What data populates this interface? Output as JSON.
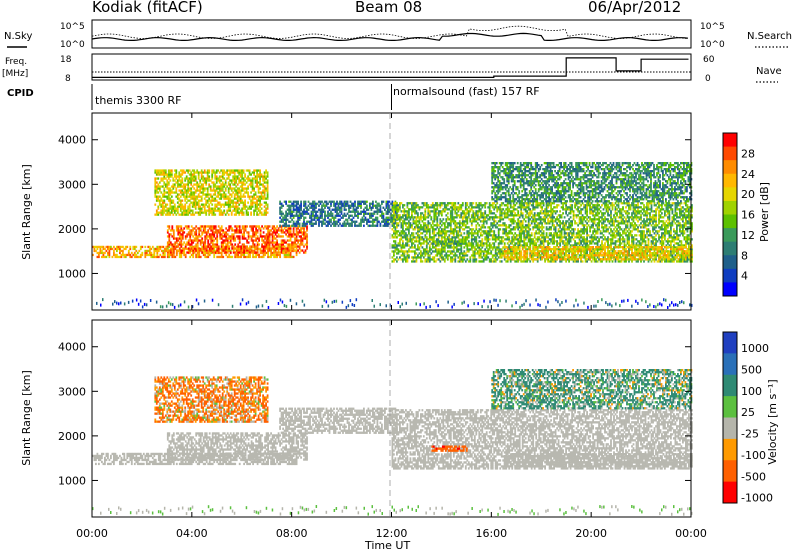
{
  "header": {
    "station": "Kodiak (fitACF)",
    "beam": "Beam 08",
    "date": "06/Apr/2012"
  },
  "top_panels": {
    "nsky_label": "N.Sky",
    "nsearch_label": "N.Search",
    "freq_label_1": "Freq.",
    "freq_label_2": "[MHz]",
    "nave_label": "Nave",
    "cpid_label": "CPID",
    "nsky_ticks": [
      "10^5",
      "10^0"
    ],
    "nsearch_ticks": [
      "10^5",
      "10^0"
    ],
    "freq_ticks": [
      "18",
      "8"
    ],
    "nave_ticks": [
      "60",
      "0"
    ]
  },
  "cpid": {
    "segment_1": "themis 3300 RF",
    "segment_2": "normalsound (fast) 157 RF",
    "switch_time_hours": 12.0
  },
  "panels": {
    "ylabel": "Slant Range [km]",
    "xlabel": "Time UT",
    "x_ticks": [
      "00:00",
      "04:00",
      "08:00",
      "12:00",
      "16:00",
      "20:00",
      "00:00"
    ],
    "y_ticks": [
      "1000",
      "2000",
      "3000",
      "4000"
    ]
  },
  "power_colorbar": {
    "label": "Power [dB]",
    "ticks": [
      "28",
      "24",
      "20",
      "16",
      "12",
      "8",
      "4"
    ],
    "colors": [
      "#ff0000",
      "#ff4a00",
      "#ff8c00",
      "#ffb800",
      "#e6d600",
      "#a0d200",
      "#5cc000",
      "#3a9a5a",
      "#2d7d73",
      "#1f5f8a",
      "#0f3dc0",
      "#0000ff"
    ]
  },
  "velocity_colorbar": {
    "label": "Velocity [m s⁻¹]",
    "ticks": [
      "1000",
      "500",
      "100",
      "25",
      "-25",
      "-100",
      "-500",
      "-1000"
    ],
    "colors": [
      "#2040c0",
      "#2a70b8",
      "#2f8a74",
      "#5cc040",
      "#b5b5ab",
      "#ff9a00",
      "#ff6000",
      "#ff0000"
    ],
    "ground_scatter_color": "#b8b8b0"
  },
  "chart_data": {
    "type": "heatmap",
    "title": "Kodiak (fitACF)",
    "xlabel": "Time UT",
    "ylabel": "Slant Range [km]",
    "xlim_hours": [
      0,
      24
    ],
    "ylim_km": [
      180,
      4600
    ],
    "power_range_db": [
      0,
      30
    ],
    "velocity_range": [
      -1000,
      1000
    ],
    "scatter_regions": [
      {
        "name": "main_band",
        "t_start": 0.0,
        "t_end": 8.2,
        "r_start": 1350,
        "r_end": 1600,
        "power_db": 22,
        "velocity": 0,
        "ground": true
      },
      {
        "name": "main_band_rise",
        "t_start": 3.0,
        "t_end": 8.6,
        "r_start": 1450,
        "r_end": 2050,
        "power_db": 25,
        "velocity": 0,
        "ground": true
      },
      {
        "name": "upper_echo",
        "t_start": 2.5,
        "t_end": 7.0,
        "r_start": 2300,
        "r_end": 3300,
        "power_db": 18,
        "velocity": -100,
        "ground": false
      },
      {
        "name": "arc_to_noon",
        "t_start": 7.5,
        "t_end": 12.2,
        "r_start": 2050,
        "r_end": 2600,
        "power_db": 8,
        "velocity": 0,
        "ground": true
      },
      {
        "name": "afternoon_arc",
        "t_start": 12.0,
        "t_end": 24.0,
        "r_start": 1250,
        "r_end": 2600,
        "power_db": 14,
        "velocity": 0,
        "ground": true
      },
      {
        "name": "evening_band",
        "t_start": 16.5,
        "t_end": 24.0,
        "r_start": 1300,
        "r_end": 1600,
        "power_db": 20,
        "velocity": 0,
        "ground": true
      },
      {
        "name": "high_range_late",
        "t_start": 16.0,
        "t_end": 24.0,
        "r_start": 2600,
        "r_end": 3500,
        "power_db": 10,
        "velocity": 100,
        "ground": false
      },
      {
        "name": "isolated_echo_14h",
        "t_start": 13.6,
        "t_end": 15.0,
        "r_start": 1650,
        "r_end": 1750,
        "power_db": 12,
        "velocity": -400,
        "ground": false
      }
    ]
  }
}
